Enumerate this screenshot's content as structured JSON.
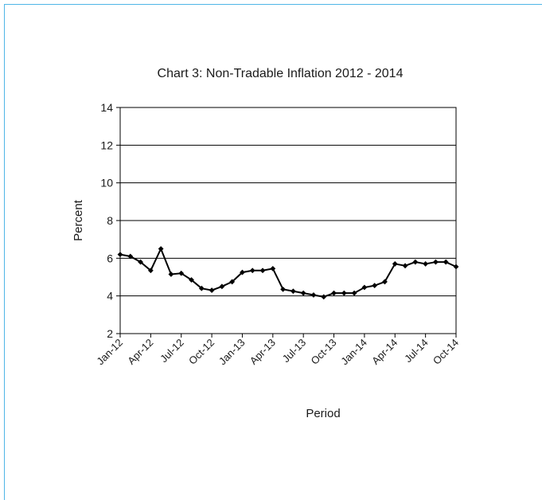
{
  "chart_data": {
    "type": "line",
    "title": "Chart 3: Non-Tradable Inflation  2012 - 2014",
    "xlabel": "Period",
    "ylabel": "Percent",
    "ylim": [
      2,
      14
    ],
    "yticks": [
      "2",
      "4",
      "6",
      "8",
      "10",
      "12",
      "14"
    ],
    "grid": true,
    "legend": "none",
    "tick_labels": [
      "Jan-12",
      "Apr-12",
      "Jul-12",
      "Oct-12",
      "Jan-13",
      "Apr-13",
      "Jul-13",
      "Oct-13",
      "Jan-14",
      "Apr-14",
      "Jul-14",
      "Oct-14"
    ],
    "x": [
      "Jan-12",
      "Feb-12",
      "Mar-12",
      "Apr-12",
      "May-12",
      "Jun-12",
      "Jul-12",
      "Aug-12",
      "Sep-12",
      "Oct-12",
      "Nov-12",
      "Dec-12",
      "Jan-13",
      "Feb-13",
      "Mar-13",
      "Apr-13",
      "May-13",
      "Jun-13",
      "Jul-13",
      "Aug-13",
      "Sep-13",
      "Oct-13",
      "Nov-13",
      "Dec-13",
      "Jan-14",
      "Feb-14",
      "Mar-14",
      "Apr-14",
      "May-14",
      "Jun-14",
      "Jul-14",
      "Aug-14",
      "Sep-14",
      "Oct-14"
    ],
    "series": [
      {
        "values": [
          6.2,
          6.1,
          5.8,
          5.35,
          6.5,
          5.15,
          5.2,
          4.85,
          4.4,
          4.3,
          4.5,
          4.75,
          5.25,
          5.35,
          5.35,
          5.45,
          4.35,
          4.25,
          4.15,
          4.05,
          3.95,
          4.15,
          4.15,
          4.15,
          4.45,
          4.55,
          4.75,
          5.7,
          5.6,
          5.8,
          5.7,
          5.8,
          5.8,
          5.55
        ],
        "color": "#000000"
      }
    ]
  }
}
